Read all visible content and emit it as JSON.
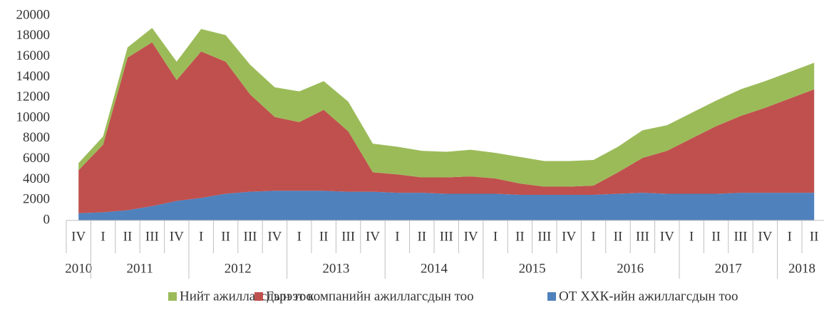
{
  "chart_data": {
    "type": "stacked_area",
    "categories": [
      "IV",
      "I",
      "II",
      "III",
      "IV",
      "I",
      "II",
      "III",
      "IV",
      "I",
      "II",
      "III",
      "IV",
      "I",
      "II",
      "III",
      "IV",
      "I",
      "II",
      "III",
      "IV",
      "I",
      "II",
      "III",
      "IV",
      "I",
      "II",
      "III",
      "IV",
      "I",
      "II"
    ],
    "groups": [
      {
        "label": "2010",
        "size": 1
      },
      {
        "label": "2011",
        "size": 4
      },
      {
        "label": "2012",
        "size": 4
      },
      {
        "label": "2013",
        "size": 4
      },
      {
        "label": "2014",
        "size": 4
      },
      {
        "label": "2015",
        "size": 4
      },
      {
        "label": "2016",
        "size": 4
      },
      {
        "label": "2017",
        "size": 4
      },
      {
        "label": "2018",
        "size": 2
      }
    ],
    "series": [
      {
        "name": "Нийт ажиллагсдын тоо",
        "color": "#9bbb59",
        "values": [
          700,
          800,
          1000,
          1400,
          1800,
          2200,
          2600,
          2900,
          2900,
          3000,
          2800,
          2900,
          2800,
          2700,
          2600,
          2500,
          2600,
          2500,
          2600,
          2500,
          2500,
          2500,
          2500,
          2700,
          2500,
          2500,
          2500,
          2600,
          2600,
          2600,
          2600
        ]
      },
      {
        "name": "Гэрээт компанийн ажиллагсдын тоо",
        "color": "#c0504d",
        "values": [
          4200,
          6600,
          14900,
          16000,
          11800,
          14300,
          12900,
          9500,
          7200,
          6700,
          7900,
          5900,
          1900,
          1800,
          1500,
          1600,
          1700,
          1500,
          1100,
          800,
          800,
          900,
          2100,
          3400,
          4200,
          5400,
          6600,
          7500,
          8300,
          9200,
          10100
        ]
      },
      {
        "name": "ОТ ХХК-ийн ажиллагсдын тоо",
        "color": "#4f81bd",
        "values": [
          700,
          800,
          1000,
          1400,
          1900,
          2200,
          2600,
          2800,
          2900,
          2900,
          2900,
          2800,
          2800,
          2700,
          2700,
          2600,
          2600,
          2600,
          2500,
          2500,
          2500,
          2500,
          2600,
          2700,
          2600,
          2600,
          2600,
          2700,
          2700,
          2700,
          2700
        ]
      }
    ],
    "ylim": [
      0,
      20000
    ],
    "yticks": [
      0,
      2000,
      4000,
      6000,
      8000,
      10000,
      12000,
      14000,
      16000,
      18000,
      20000
    ],
    "legend": "bottom"
  }
}
